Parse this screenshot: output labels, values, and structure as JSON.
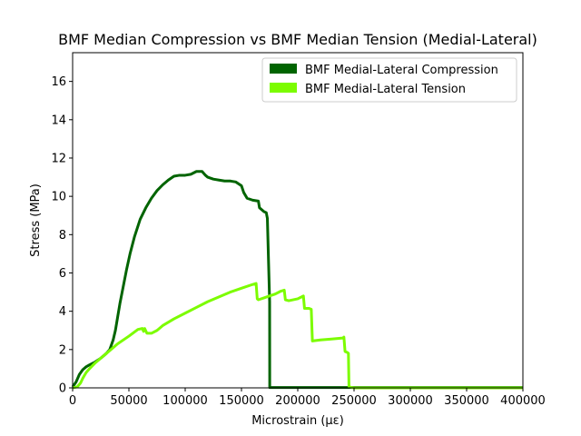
{
  "chart_data": {
    "type": "line",
    "title": "BMF Median Compression vs BMF Median Tension (Medial-Lateral)",
    "xlabel": "Microstrain (με)",
    "ylabel": "Stress (MPa)",
    "xlim": [
      0,
      400000
    ],
    "ylim": [
      0,
      17.5
    ],
    "xticks": [
      0,
      50000,
      100000,
      150000,
      200000,
      250000,
      300000,
      350000,
      400000
    ],
    "yticks": [
      0,
      2,
      4,
      6,
      8,
      10,
      12,
      14,
      16
    ],
    "grid": false,
    "legend_position": "top-right",
    "series": [
      {
        "name": "BMF Medial-Lateral Compression",
        "color": "#006400",
        "x": [
          0,
          3000,
          6000,
          9000,
          12000,
          15000,
          20000,
          25000,
          30000,
          33000,
          36000,
          38000,
          40000,
          42000,
          45000,
          48000,
          51000,
          55000,
          60000,
          65000,
          70000,
          75000,
          80000,
          85000,
          90000,
          95000,
          100000,
          105000,
          110000,
          115000,
          118000,
          120000,
          125000,
          130000,
          135000,
          140000,
          145000,
          150000,
          152000,
          155000,
          160000,
          165000,
          166000,
          170000,
          172000,
          173000,
          175000,
          175100,
          180000,
          200000,
          250000,
          300000,
          350000,
          400000
        ],
        "y": [
          0.05,
          0.3,
          0.7,
          0.95,
          1.1,
          1.2,
          1.35,
          1.55,
          1.8,
          2.0,
          2.5,
          3.0,
          3.7,
          4.4,
          5.3,
          6.2,
          7.0,
          7.9,
          8.8,
          9.4,
          9.9,
          10.3,
          10.6,
          10.85,
          11.05,
          11.1,
          11.1,
          11.15,
          11.3,
          11.3,
          11.1,
          11.0,
          10.9,
          10.85,
          10.8,
          10.8,
          10.75,
          10.55,
          10.2,
          9.9,
          9.8,
          9.75,
          9.4,
          9.2,
          9.15,
          8.85,
          4.5,
          0.02,
          0.02,
          0.02,
          0.02,
          0.02,
          0.02,
          0.02
        ]
      },
      {
        "name": "BMF Medial-Lateral Tension",
        "color": "#7CFC00",
        "x": [
          0,
          4000,
          7000,
          9000,
          12000,
          15000,
          20000,
          30000,
          40000,
          50000,
          58000,
          62000,
          63000,
          64000,
          66000,
          70000,
          75000,
          80000,
          90000,
          100000,
          110000,
          120000,
          130000,
          140000,
          150000,
          160000,
          163000,
          164000,
          165000,
          170000,
          175000,
          180000,
          185000,
          188000,
          189000,
          192000,
          200000,
          205000,
          206000,
          210000,
          212000,
          213000,
          220000,
          230000,
          240000,
          241000,
          242000,
          244000,
          245000,
          245500,
          250000,
          300000,
          350000,
          400000
        ],
        "y": [
          0.0,
          0.05,
          0.25,
          0.5,
          0.8,
          1.0,
          1.3,
          1.8,
          2.3,
          2.7,
          3.05,
          3.1,
          2.95,
          3.1,
          2.85,
          2.85,
          3.0,
          3.25,
          3.6,
          3.9,
          4.2,
          4.5,
          4.75,
          5.0,
          5.2,
          5.4,
          5.45,
          4.65,
          4.6,
          4.7,
          4.8,
          4.9,
          5.05,
          5.1,
          4.6,
          4.55,
          4.65,
          4.8,
          4.15,
          4.15,
          4.1,
          2.45,
          2.5,
          2.55,
          2.6,
          2.65,
          1.9,
          1.85,
          1.8,
          0.05,
          0.0,
          0.0,
          0.0,
          0.0
        ]
      }
    ]
  }
}
